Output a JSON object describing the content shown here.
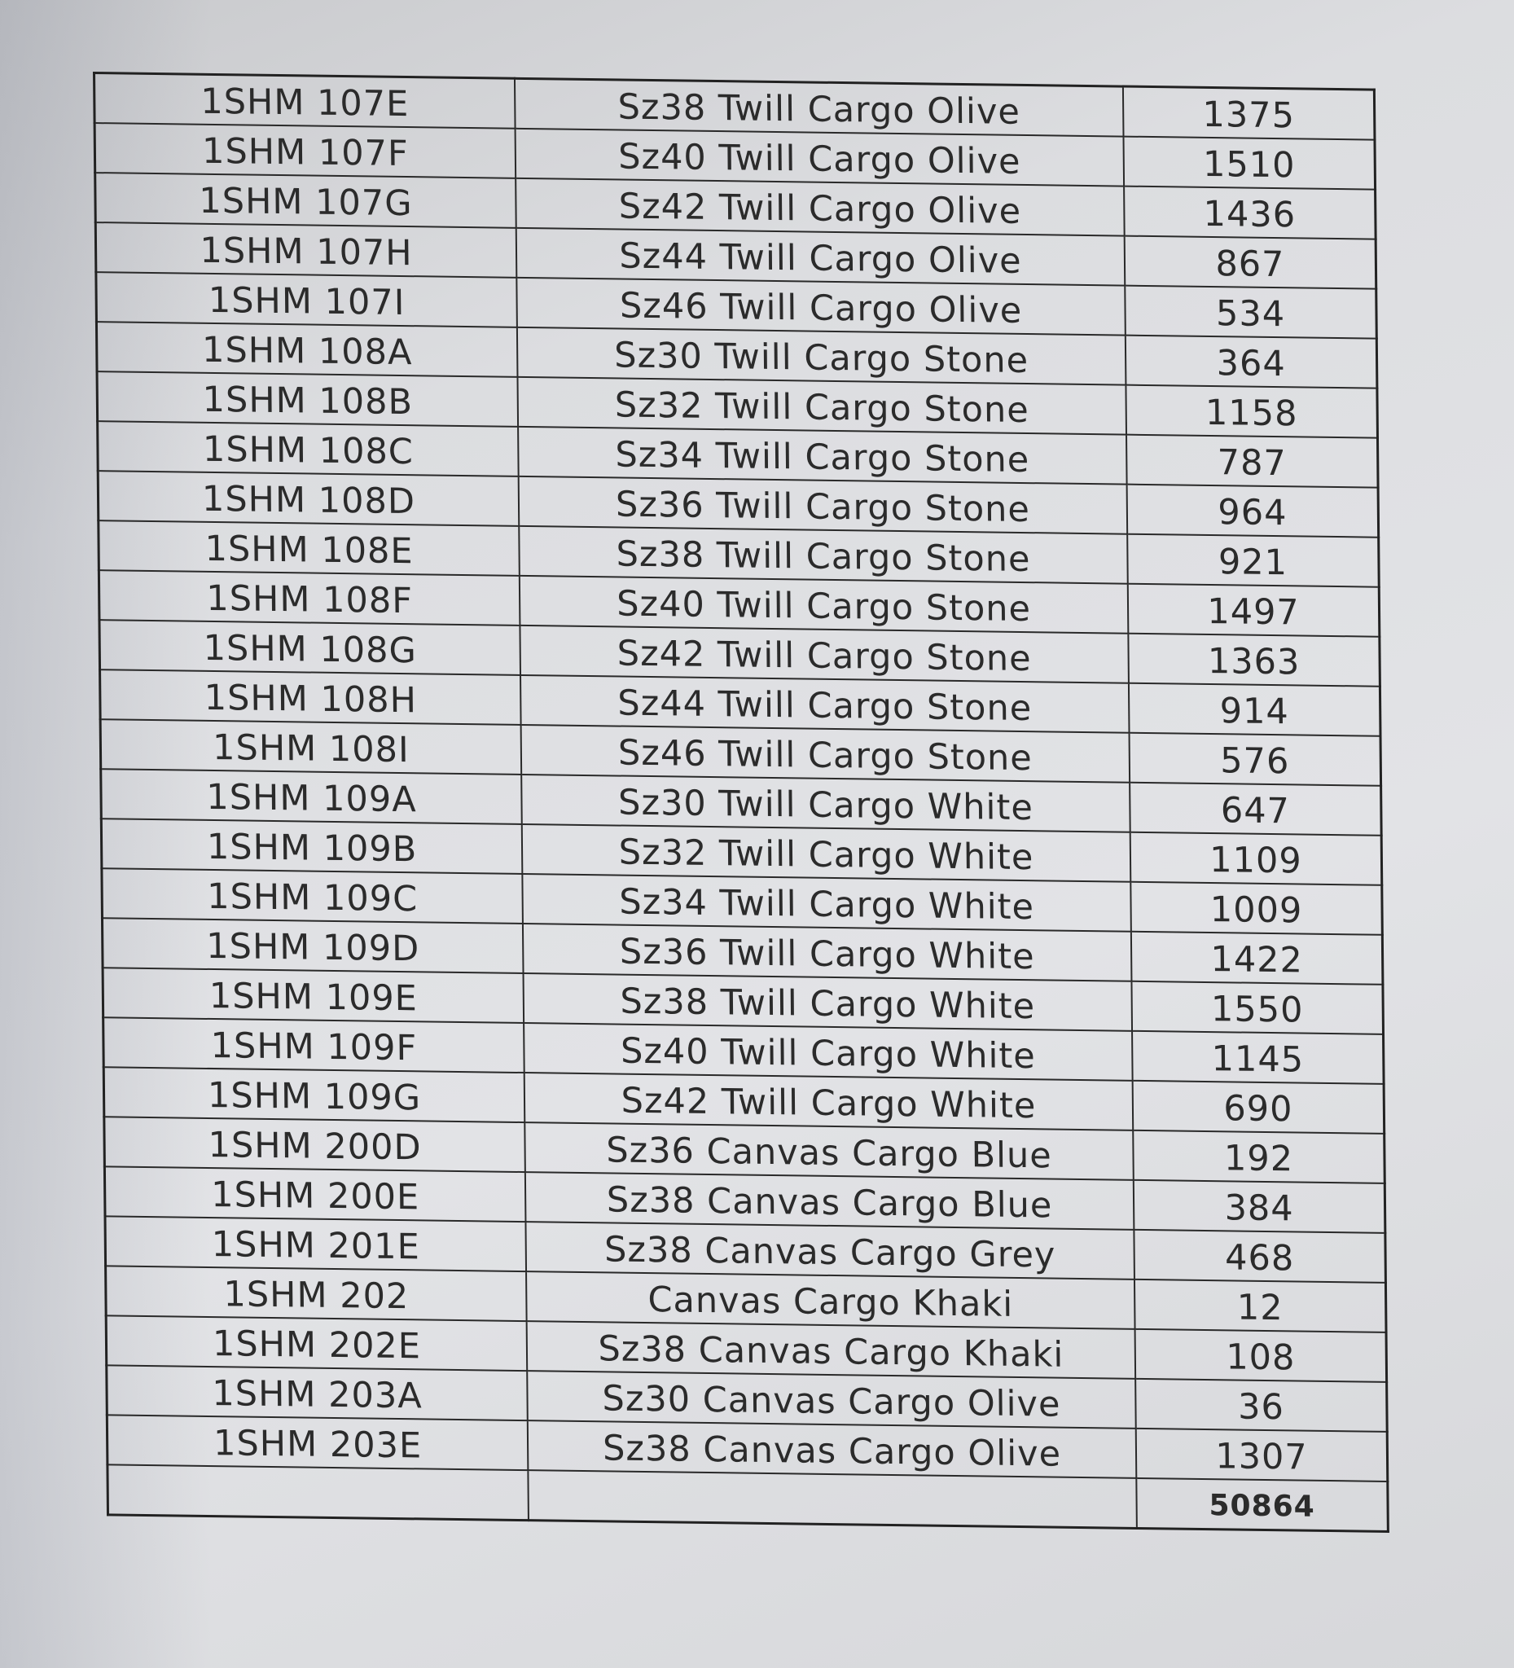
{
  "table": {
    "rows": [
      {
        "code": "1SHM 107E",
        "description": "Sz38 Twill Cargo Olive",
        "qty": "1375"
      },
      {
        "code": "1SHM 107F",
        "description": "Sz40 Twill Cargo Olive",
        "qty": "1510"
      },
      {
        "code": "1SHM 107G",
        "description": "Sz42 Twill Cargo Olive",
        "qty": "1436"
      },
      {
        "code": "1SHM 107H",
        "description": "Sz44 Twill Cargo Olive",
        "qty": "867"
      },
      {
        "code": "1SHM 107I",
        "description": "Sz46 Twill Cargo Olive",
        "qty": "534"
      },
      {
        "code": "1SHM 108A",
        "description": "Sz30 Twill Cargo Stone",
        "qty": "364"
      },
      {
        "code": "1SHM 108B",
        "description": "Sz32 Twill Cargo Stone",
        "qty": "1158"
      },
      {
        "code": "1SHM 108C",
        "description": "Sz34 Twill Cargo Stone",
        "qty": "787"
      },
      {
        "code": "1SHM 108D",
        "description": "Sz36 Twill Cargo Stone",
        "qty": "964"
      },
      {
        "code": "1SHM 108E",
        "description": "Sz38 Twill Cargo Stone",
        "qty": "921"
      },
      {
        "code": "1SHM 108F",
        "description": "Sz40 Twill Cargo Stone",
        "qty": "1497"
      },
      {
        "code": "1SHM 108G",
        "description": "Sz42 Twill Cargo Stone",
        "qty": "1363"
      },
      {
        "code": "1SHM 108H",
        "description": "Sz44 Twill Cargo Stone",
        "qty": "914"
      },
      {
        "code": "1SHM 108I",
        "description": "Sz46 Twill Cargo Stone",
        "qty": "576"
      },
      {
        "code": "1SHM 109A",
        "description": "Sz30 Twill Cargo White",
        "qty": "647"
      },
      {
        "code": "1SHM 109B",
        "description": "Sz32 Twill Cargo White",
        "qty": "1109"
      },
      {
        "code": "1SHM 109C",
        "description": "Sz34 Twill Cargo White",
        "qty": "1009"
      },
      {
        "code": "1SHM 109D",
        "description": "Sz36 Twill Cargo White",
        "qty": "1422"
      },
      {
        "code": "1SHM 109E",
        "description": "Sz38 Twill Cargo White",
        "qty": "1550"
      },
      {
        "code": "1SHM 109F",
        "description": "Sz40 Twill Cargo White",
        "qty": "1145"
      },
      {
        "code": "1SHM 109G",
        "description": "Sz42 Twill Cargo White",
        "qty": "690"
      },
      {
        "code": "1SHM 200D",
        "description": "Sz36 Canvas Cargo Blue",
        "qty": "192"
      },
      {
        "code": "1SHM 200E",
        "description": "Sz38 Canvas Cargo Blue",
        "qty": "384"
      },
      {
        "code": "1SHM 201E",
        "description": "Sz38 Canvas Cargo Grey",
        "qty": "468"
      },
      {
        "code": "1SHM 202",
        "description": "Canvas Cargo Khaki",
        "qty": "12"
      },
      {
        "code": "1SHM 202E",
        "description": "Sz38 Canvas Cargo Khaki",
        "qty": "108"
      },
      {
        "code": "1SHM 203A",
        "description": "Sz30 Canvas Cargo Olive",
        "qty": "36"
      },
      {
        "code": "1SHM 203E",
        "description": "Sz38 Canvas Cargo Olive",
        "qty": "1307"
      }
    ],
    "total": "50864"
  }
}
